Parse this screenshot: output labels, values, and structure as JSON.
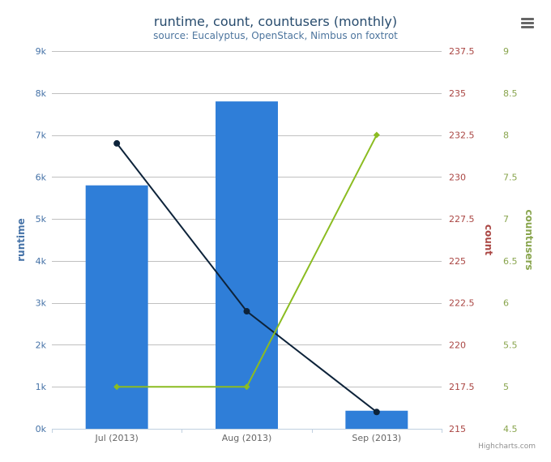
{
  "chart_data": {
    "type": "bar",
    "title": "runtime, count, countusers (monthly)",
    "subtitle": "source: Eucalyptus, OpenStack, Nimbus on foxtrot",
    "categories": [
      "Jul (2013)",
      "Aug (2013)",
      "Sep (2013)"
    ],
    "y_axes": [
      {
        "id": "runtime",
        "title": "runtime",
        "side": "left",
        "range": [
          0,
          9000
        ],
        "ticks": [
          0,
          1000,
          2000,
          3000,
          4000,
          5000,
          6000,
          7000,
          8000,
          9000
        ],
        "tick_labels": [
          "0k",
          "1k",
          "2k",
          "3k",
          "4k",
          "5k",
          "6k",
          "7k",
          "8k",
          "9k"
        ],
        "color": "#4572A7"
      },
      {
        "id": "count",
        "title": "count",
        "side": "right",
        "range": [
          215,
          237.5
        ],
        "ticks": [
          215,
          217.5,
          220,
          222.5,
          225,
          227.5,
          230,
          232.5,
          235,
          237.5
        ],
        "tick_labels": [
          "215",
          "217.5",
          "220",
          "222.5",
          "225",
          "227.5",
          "230",
          "232.5",
          "235",
          "237.5"
        ],
        "color": "#AA4643"
      },
      {
        "id": "countusers",
        "title": "countusers",
        "side": "right",
        "range": [
          4.5,
          9
        ],
        "ticks": [
          4.5,
          5,
          5.5,
          6,
          6.5,
          7,
          7.5,
          8,
          8.5,
          9
        ],
        "tick_labels": [
          "4.5",
          "5",
          "5.5",
          "6",
          "6.5",
          "7",
          "7.5",
          "8",
          "8.5",
          "9"
        ],
        "color": "#89A54E"
      }
    ],
    "series": [
      {
        "name": "runtime",
        "type": "column",
        "axis": "runtime",
        "color": "#2F7ED8",
        "values": [
          5800,
          7800,
          430
        ]
      },
      {
        "name": "count",
        "type": "line",
        "axis": "count",
        "color": "#0D233A",
        "marker": "circle",
        "values": [
          232,
          222,
          216
        ]
      },
      {
        "name": "countusers",
        "type": "line",
        "axis": "countusers",
        "color": "#8BBC21",
        "marker": "diamond",
        "values": [
          5,
          5,
          8
        ]
      }
    ],
    "grid": true,
    "legend": "none"
  },
  "ui": {
    "credits": "Highcharts.com",
    "menu_icon": "hamburger-menu-icon"
  },
  "colors": {
    "title": "#274b6d",
    "subtitle": "#4d759e",
    "tick_text": "#666666",
    "grid": "#C0C0C0"
  }
}
